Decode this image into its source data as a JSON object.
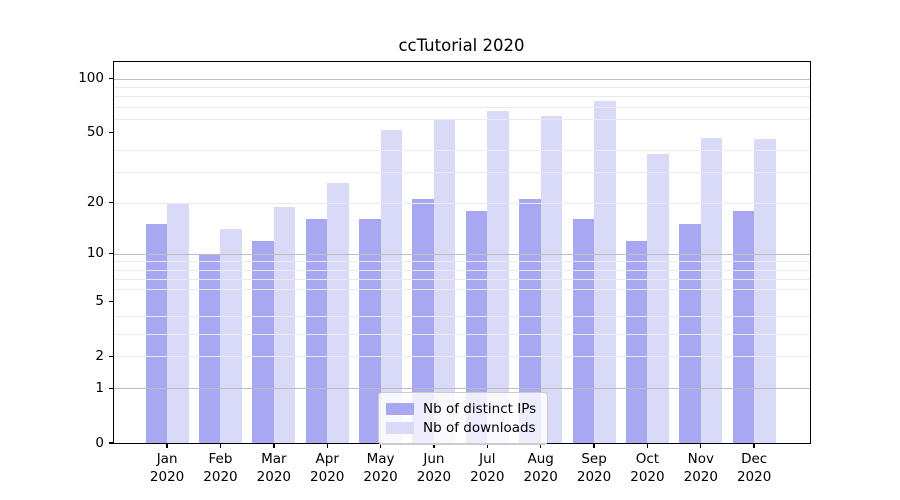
{
  "chart_data": {
    "type": "bar",
    "title": "ccTutorial 2020",
    "categories": [
      "Jan",
      "Feb",
      "Mar",
      "Apr",
      "May",
      "Jun",
      "Jul",
      "Aug",
      "Sep",
      "Oct",
      "Nov",
      "Dec"
    ],
    "x_tick_second_line": "2020",
    "series": [
      {
        "name": "Nb of distinct IPs",
        "color": "#a7a7f2",
        "values": [
          15,
          10,
          12,
          16,
          16,
          21,
          18,
          21,
          16,
          12,
          15,
          18
        ]
      },
      {
        "name": "Nb of downloads",
        "color": "#d9d9f8",
        "values": [
          20,
          14,
          19,
          26,
          52,
          59,
          66,
          62,
          75,
          38,
          47,
          46
        ]
      }
    ],
    "yscale": "symlog-log1p",
    "ylim": [
      0,
      124
    ],
    "yticks": [
      0,
      1,
      2,
      5,
      10,
      20,
      50,
      100
    ],
    "ytick_labels": [
      "0",
      "1",
      "2",
      "5",
      "10",
      "20",
      "50",
      "100"
    ],
    "major_gridlines": [
      1,
      10,
      100
    ],
    "minor_gridlines": [
      2,
      3,
      4,
      6,
      7,
      8,
      9,
      20,
      30,
      40,
      60,
      70,
      80,
      90
    ],
    "grid": "on",
    "legend_position": "inside-bottom-center",
    "colors": {
      "grid_major": "#bdbdbd",
      "grid_minor": "#eaeaea",
      "axis": "#000000",
      "background": "#ffffff"
    }
  },
  "legend": {
    "items": [
      {
        "label": "Nb of distinct IPs"
      },
      {
        "label": "Nb of downloads"
      }
    ]
  }
}
